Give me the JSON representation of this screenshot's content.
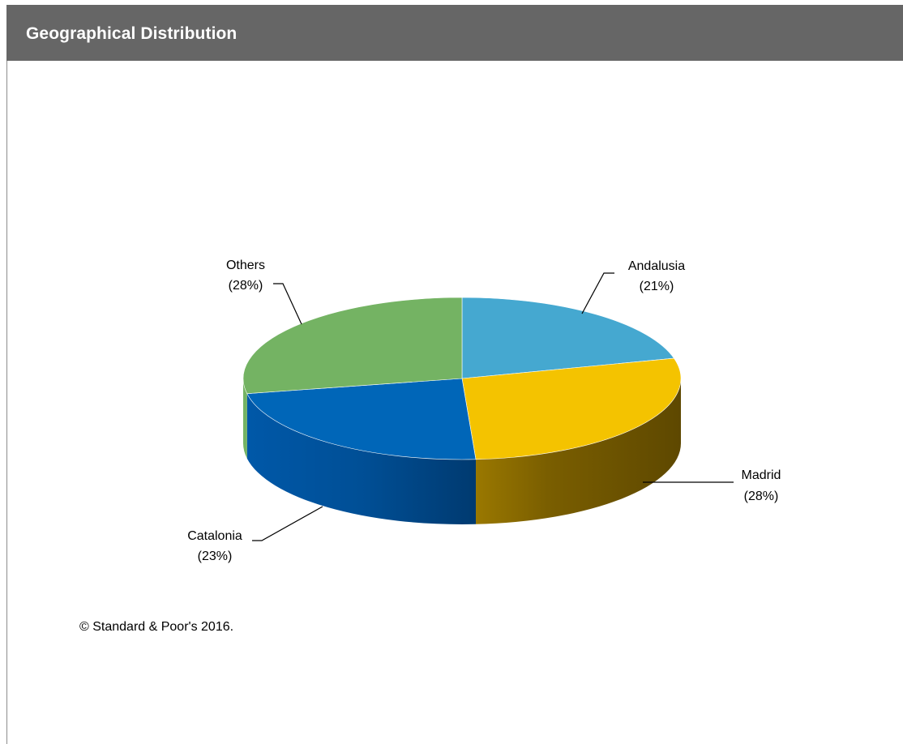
{
  "header": {
    "title": "Geographical Distribution"
  },
  "footer": {
    "copyright": "© Standard & Poor's 2016."
  },
  "chart_data": {
    "type": "pie",
    "title": "Geographical Distribution",
    "three_d": true,
    "slices": [
      {
        "name": "Andalusia",
        "value": 21,
        "label": "(21%)",
        "color": "#45a8d0"
      },
      {
        "name": "Madrid",
        "value": 28,
        "label": "(28%)",
        "color": "#f4c300"
      },
      {
        "name": "Catalonia",
        "value": 23,
        "label": "(23%)",
        "color": "#0066b8"
      },
      {
        "name": "Others",
        "value": 28,
        "label": "(28%)",
        "color": "#74b363"
      }
    ]
  }
}
